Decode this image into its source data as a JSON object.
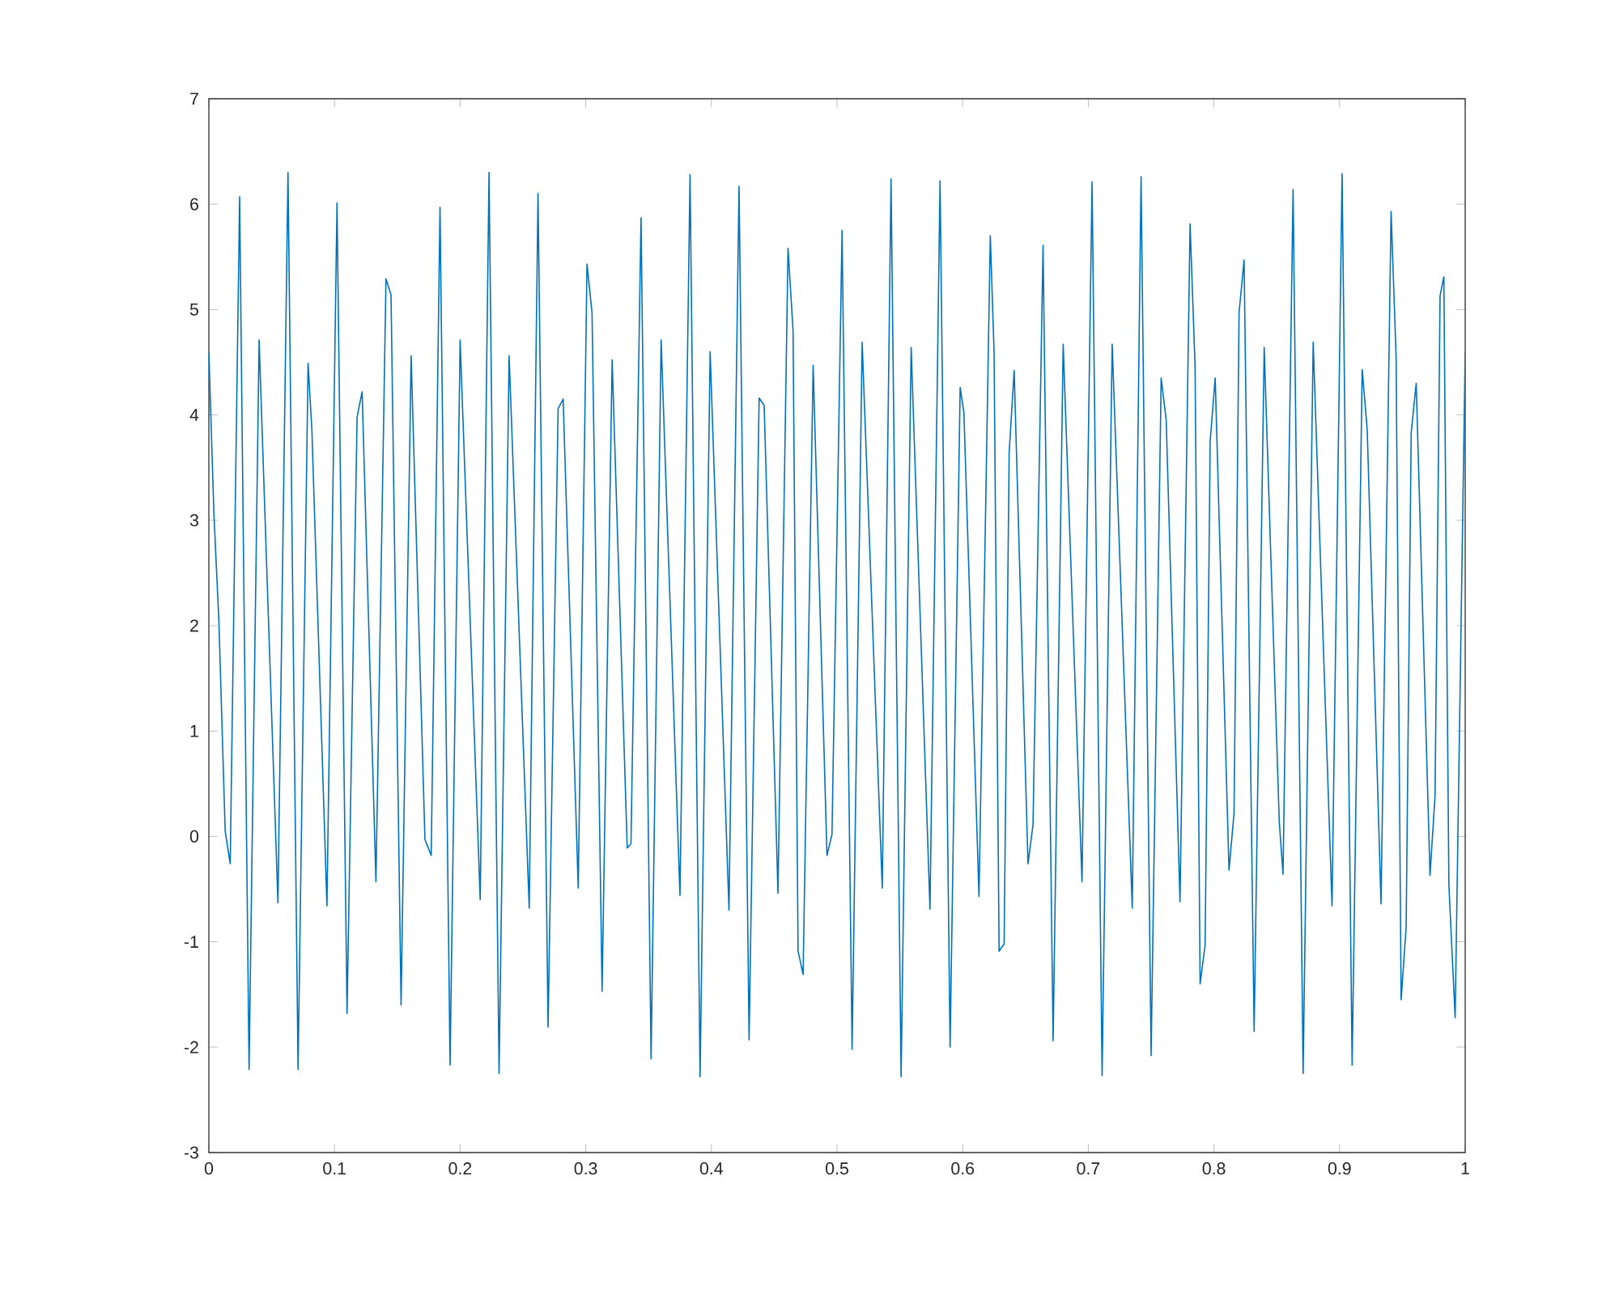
{
  "chart_data": {
    "type": "line",
    "x": [
      0,
      0.004,
      0.008,
      0.013,
      0.017,
      0.0245,
      0.032,
      0.04,
      0.055,
      0.063,
      0.071,
      0.079,
      0.082,
      0.094,
      0.102,
      0.11,
      0.118,
      0.122,
      0.133,
      0.141,
      0.145,
      0.153,
      0.161,
      0.172,
      0.177,
      0.184,
      0.192,
      0.2,
      0.216,
      0.223,
      0.231,
      0.239,
      0.255,
      0.262,
      0.27,
      0.278,
      0.282,
      0.294,
      0.301,
      0.305,
      0.313,
      0.321,
      0.333,
      0.336,
      0.344,
      0.352,
      0.36,
      0.375,
      0.383,
      0.391,
      0.399,
      0.414,
      0.422,
      0.43,
      0.438,
      0.442,
      0.453,
      0.461,
      0.465,
      0.469,
      0.473,
      0.481,
      0.492,
      0.496,
      0.504,
      0.512,
      0.52,
      0.536,
      0.543,
      0.551,
      0.559,
      0.574,
      0.582,
      0.59,
      0.598,
      0.601,
      0.613,
      0.622,
      0.625,
      0.629,
      0.633,
      0.637,
      0.641,
      0.652,
      0.656,
      0.664,
      0.672,
      0.68,
      0.695,
      0.703,
      0.711,
      0.719,
      0.735,
      0.742,
      0.75,
      0.758,
      0.762,
      0.773,
      0.781,
      0.785,
      0.789,
      0.793,
      0.797,
      0.801,
      0.812,
      0.816,
      0.82,
      0.824,
      0.832,
      0.84,
      0.852,
      0.855,
      0.863,
      0.871,
      0.879,
      0.894,
      0.902,
      0.91,
      0.918,
      0.922,
      0.933,
      0.941,
      0.945,
      0.949,
      0.953,
      0.957,
      0.961,
      0.972,
      0.976,
      0.98,
      0.983,
      0.987,
      0.992,
      1
    ],
    "series": [
      {
        "color": "#0072bd",
        "values": [
          4.6,
          3.07,
          2.04,
          0.05,
          -0.26,
          6.07,
          -2.21,
          4.71,
          -0.63,
          6.3,
          -2.21,
          4.49,
          3.86,
          -0.66,
          6.01,
          -1.68,
          3.98,
          4.22,
          -0.43,
          5.29,
          5.14,
          -1.6,
          4.56,
          -0.03,
          -0.18,
          5.97,
          -2.17,
          4.71,
          -0.6,
          6.3,
          -2.25,
          4.56,
          -0.68,
          6.1,
          -1.81,
          4.06,
          4.15,
          -0.49,
          5.43,
          4.97,
          -1.47,
          4.52,
          -0.11,
          -0.07,
          5.87,
          -2.11,
          4.71,
          -0.56,
          6.28,
          -2.28,
          4.6,
          -0.7,
          6.17,
          -1.93,
          4.16,
          4.09,
          -0.54,
          5.58,
          4.8,
          -1.09,
          -1.31,
          4.47,
          -0.18,
          0.02,
          5.75,
          -2.02,
          4.69,
          -0.49,
          6.24,
          -2.28,
          4.64,
          -0.69,
          6.22,
          -2.0,
          4.26,
          4.02,
          -0.57,
          5.7,
          4.6,
          -1.09,
          -1.02,
          3.64,
          4.42,
          -0.26,
          0.11,
          5.61,
          -1.94,
          4.67,
          -0.43,
          6.21,
          -2.27,
          4.67,
          -0.68,
          6.26,
          -2.08,
          4.35,
          3.95,
          -0.62,
          5.81,
          4.46,
          -1.4,
          -1.03,
          3.75,
          4.35,
          -0.32,
          0.22,
          4.97,
          5.47,
          -1.85,
          4.64,
          0.14,
          -0.36,
          6.14,
          -2.25,
          4.69,
          -0.66,
          6.29,
          -2.17,
          4.43,
          3.86,
          -0.64,
          5.93,
          4.55,
          -1.55,
          -0.86,
          3.83,
          4.3,
          -0.37,
          0.39,
          5.13,
          5.31,
          -0.46,
          -1.72,
          4.6
        ]
      }
    ],
    "xlim": [
      0,
      1
    ],
    "ylim": [
      -3,
      7
    ],
    "xticks": [
      0,
      0.1,
      0.2,
      0.3,
      0.4,
      0.5,
      0.6,
      0.7,
      0.8,
      0.9,
      1
    ],
    "yticks": [
      -3,
      -2,
      -1,
      0,
      1,
      2,
      3,
      4,
      5,
      6,
      7
    ],
    "marker": "none",
    "line_style": "solid"
  }
}
